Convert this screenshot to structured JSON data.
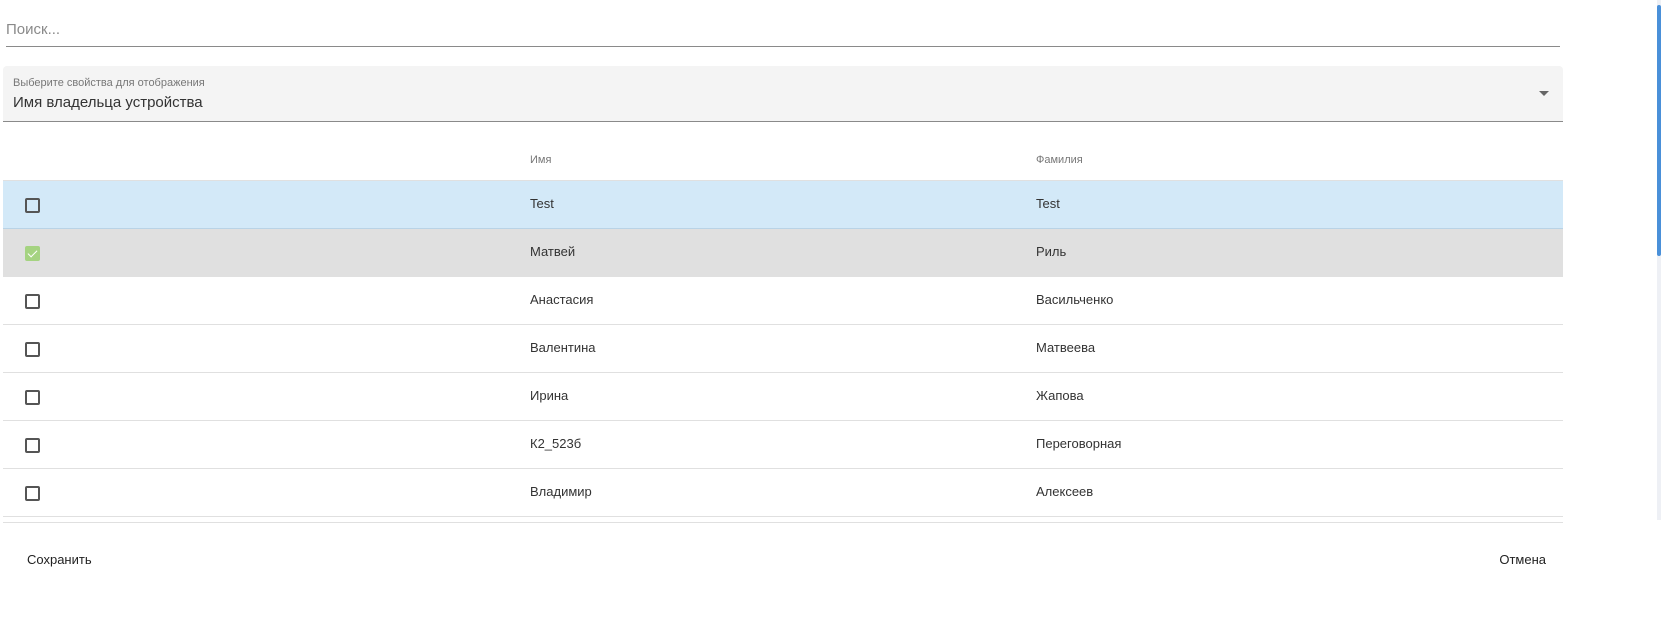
{
  "search": {
    "placeholder": "Поиск...",
    "value": ""
  },
  "select": {
    "label": "Выберите свойства для отображения",
    "value": "Имя владельца устройства"
  },
  "table": {
    "columns": [
      "Имя",
      "Фамилия"
    ],
    "rows": [
      {
        "first": "Test",
        "last": "Test",
        "checked": false,
        "state": "hover"
      },
      {
        "first": "Матвей",
        "last": "Риль",
        "checked": true,
        "state": "selected"
      },
      {
        "first": "Анастасия",
        "last": "Васильченко",
        "checked": false,
        "state": ""
      },
      {
        "first": "Валентина",
        "last": "Матвеева",
        "checked": false,
        "state": ""
      },
      {
        "first": "Ирина",
        "last": "Жапова",
        "checked": false,
        "state": ""
      },
      {
        "first": "К2_523б",
        "last": "Переговорная",
        "checked": false,
        "state": ""
      },
      {
        "first": "Владимир",
        "last": "Алексеев",
        "checked": false,
        "state": ""
      }
    ]
  },
  "footer": {
    "save_label": "Сохранить",
    "cancel_label": "Отмена"
  },
  "colors": {
    "hover_row": "#d3e9f8",
    "selected_row": "#e0e0e0",
    "checkbox_checked": "#a5d381",
    "scrollbar": "#4a90d9"
  }
}
